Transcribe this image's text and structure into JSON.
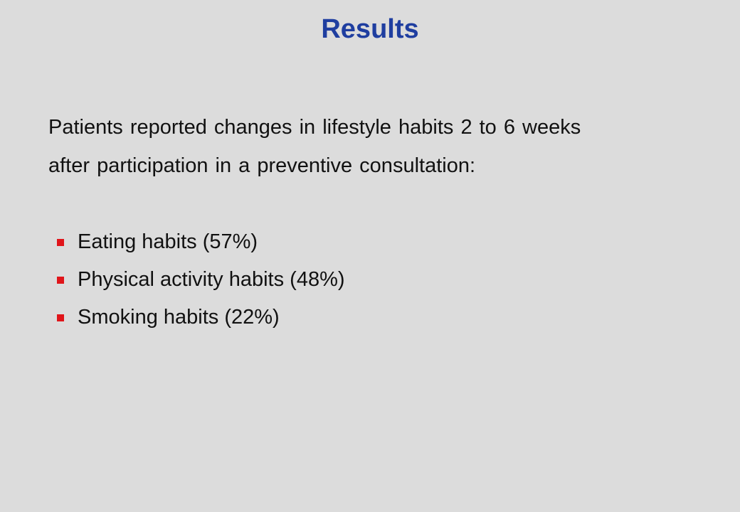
{
  "slide": {
    "title": "Results",
    "intro_line_1": "Patients reported changes in lifestyle habits 2 to 6 weeks",
    "intro_line_2": "after participation in a preventive consultation:",
    "bullets": [
      {
        "label": "Eating habits (57%)"
      },
      {
        "label": "Physical activity habits (48%)"
      },
      {
        "label": "Smoking habits (22%)"
      }
    ]
  },
  "colors": {
    "background": "#dcdcdc",
    "title": "#1f3ea0",
    "bullet_marker": "#e0151a",
    "body_text": "#111111"
  }
}
